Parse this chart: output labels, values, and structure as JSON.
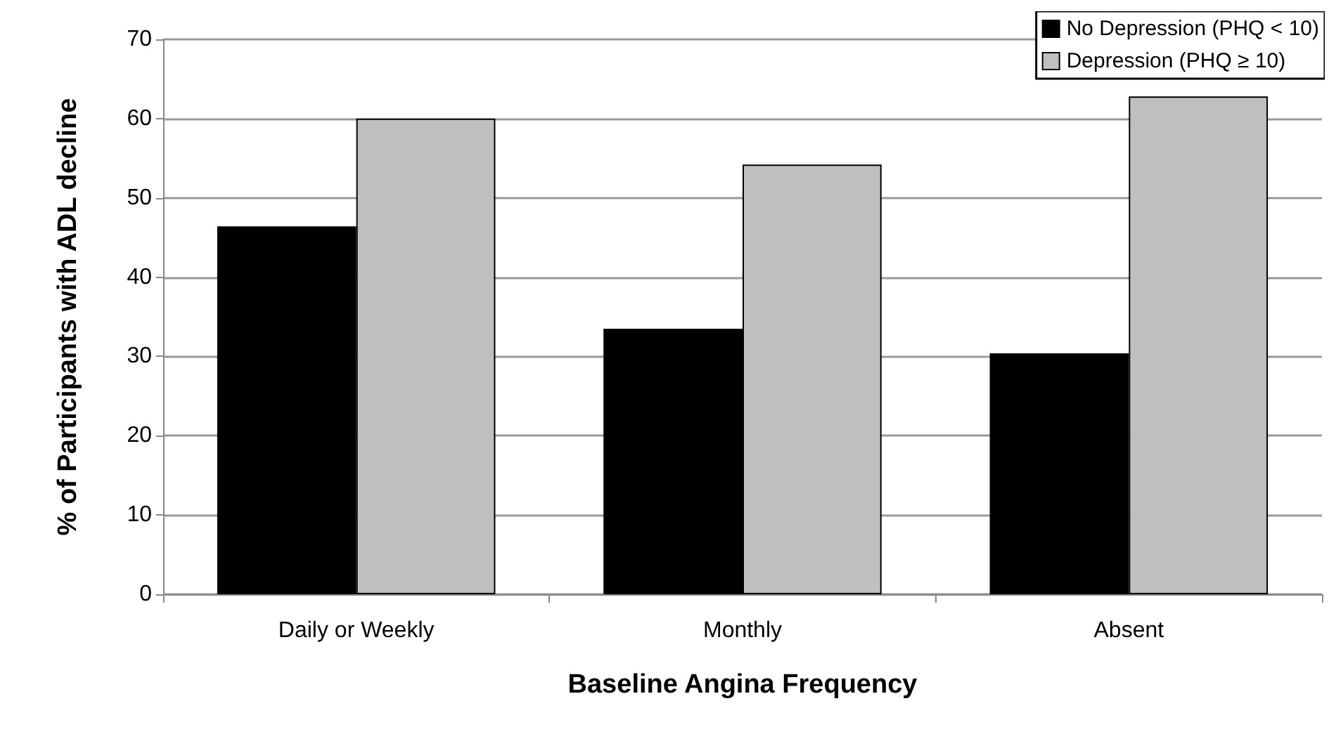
{
  "chart_data": {
    "type": "bar",
    "xlabel": "Baseline Angina Frequency",
    "ylabel": "% of Participants with ADL decline",
    "categories": [
      "Daily or Weekly",
      "Monthly",
      "Absent"
    ],
    "series": [
      {
        "name": "No Depression (PHQ < 10)",
        "color": "#000000",
        "values": [
          46.4,
          33.5,
          30.4
        ]
      },
      {
        "name": "Depression (PHQ ≥ 10)",
        "color": "#bfbfbf",
        "values": [
          60,
          54.2,
          62.8
        ]
      }
    ],
    "ylim": [
      0,
      70
    ],
    "yticks": [
      0,
      10,
      20,
      30,
      40,
      50,
      60,
      70
    ],
    "grid": "y",
    "legend": "top right"
  }
}
